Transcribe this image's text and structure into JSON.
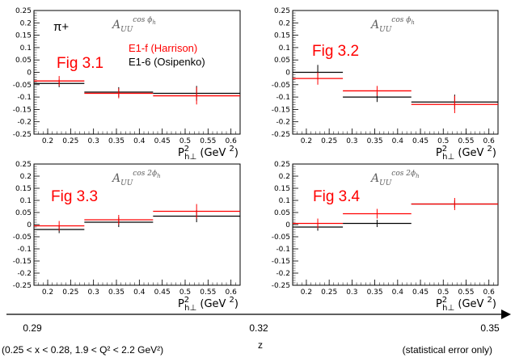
{
  "figure_label": "π+",
  "legend": [
    {
      "label": "E1-f (Harrison)",
      "color": "#ff0000"
    },
    {
      "label": "E1-6 (Osipenko)",
      "color": "#000000"
    }
  ],
  "bottom_axis": {
    "ticks": [
      "0.29",
      "0.32",
      "0.35"
    ],
    "label": "z",
    "kinematics": "(0.25 < x < 0.28, 1.9 < Q² < 2.2 GeV²)",
    "note": "(statistical error only)"
  },
  "chart_data": [
    {
      "type": "scatter",
      "fig_label": "Fig 3.1",
      "title": {
        "base": "A",
        "sub": "UU",
        "sup": "cos ϕ",
        "sup_sub": "h"
      },
      "xlabel": "P²h⊥ (GeV ²)",
      "xlabel_parts": {
        "p": "P",
        "sup": "2",
        "sub": "h⊥",
        "unit": " (GeV ",
        "unit_sup": "2",
        "close": ")"
      },
      "xlim": [
        0.17,
        0.62
      ],
      "ylim": [
        -0.25,
        0.25
      ],
      "x_ticks": [
        "0.2",
        "0.25",
        "0.3",
        "0.35",
        "0.4",
        "0.45",
        "0.5",
        "0.55",
        "0.6"
      ],
      "y_ticks": [
        "0.25",
        "0.2",
        "0.15",
        "0.1",
        "0.05",
        "0",
        "-0.05",
        "-0.1",
        "-0.15",
        "-0.2",
        "-0.25"
      ],
      "series": [
        {
          "name": "E1-f (Harrison)",
          "color": "#ff0000",
          "points": [
            {
              "x": 0.225,
              "xlo": 0.17,
              "xhi": 0.28,
              "y": -0.035,
              "err": 0.02
            },
            {
              "x": 0.355,
              "xlo": 0.28,
              "xhi": 0.43,
              "y": -0.085,
              "err": 0.02
            },
            {
              "x": 0.525,
              "xlo": 0.43,
              "xhi": 0.62,
              "y": -0.095,
              "err": 0.035
            }
          ]
        },
        {
          "name": "E1-6 (Osipenko)",
          "color": "#000000",
          "points": [
            {
              "x": 0.225,
              "xlo": 0.17,
              "xhi": 0.28,
              "y": -0.045,
              "err": 0.015
            },
            {
              "x": 0.355,
              "xlo": 0.28,
              "xhi": 0.43,
              "y": -0.08,
              "err": 0.02
            },
            {
              "x": 0.525,
              "xlo": 0.43,
              "xhi": 0.62,
              "y": -0.085,
              "err": 0.03
            }
          ]
        }
      ]
    },
    {
      "type": "scatter",
      "fig_label": "Fig 3.2",
      "title": {
        "base": "A",
        "sub": "UU",
        "sup": "cos ϕ",
        "sup_sub": "h"
      },
      "xlabel": "P²h⊥ (GeV ²)",
      "xlabel_parts": {
        "p": "P",
        "sup": "2",
        "sub": "h⊥",
        "unit": " (GeV ",
        "unit_sup": "2",
        "close": ")"
      },
      "xlim": [
        0.17,
        0.62
      ],
      "ylim": [
        -0.25,
        0.25
      ],
      "x_ticks": [
        "0.2",
        "0.25",
        "0.3",
        "0.35",
        "0.4",
        "0.45",
        "0.5",
        "0.55",
        "0.6"
      ],
      "y_ticks": [
        "0.25",
        "0.2",
        "0.15",
        "0.1",
        "0.05",
        "0",
        "-0.05",
        "-0.1",
        "-0.15",
        "-0.2",
        "-0.25"
      ],
      "series": [
        {
          "name": "E1-f (Harrison)",
          "color": "#ff0000",
          "points": [
            {
              "x": 0.225,
              "xlo": 0.17,
              "xhi": 0.28,
              "y": -0.025,
              "err": 0.025
            },
            {
              "x": 0.355,
              "xlo": 0.28,
              "xhi": 0.43,
              "y": -0.075,
              "err": 0.02
            },
            {
              "x": 0.525,
              "xlo": 0.43,
              "xhi": 0.62,
              "y": -0.13,
              "err": 0.035
            }
          ]
        },
        {
          "name": "E1-6 (Osipenko)",
          "color": "#000000",
          "points": [
            {
              "x": 0.225,
              "xlo": 0.17,
              "xhi": 0.28,
              "y": 0.0,
              "err": 0.03
            },
            {
              "x": 0.355,
              "xlo": 0.28,
              "xhi": 0.43,
              "y": -0.1,
              "err": 0.02
            },
            {
              "x": 0.525,
              "xlo": 0.43,
              "xhi": 0.62,
              "y": -0.12,
              "err": 0.03
            }
          ]
        }
      ]
    },
    {
      "type": "scatter",
      "fig_label": "Fig 3.3",
      "title": {
        "base": "A",
        "sub": "UU",
        "sup": "cos 2ϕ",
        "sup_sub": "h"
      },
      "xlabel": "P²h⊥ (GeV ²)",
      "xlabel_parts": {
        "p": "P",
        "sup": "2",
        "sub": "h⊥",
        "unit": " (GeV ",
        "unit_sup": "2",
        "close": ")"
      },
      "xlim": [
        0.17,
        0.62
      ],
      "ylim": [
        -0.25,
        0.25
      ],
      "x_ticks": [
        "0.2",
        "0.25",
        "0.3",
        "0.35",
        "0.4",
        "0.45",
        "0.5",
        "0.55",
        "0.6"
      ],
      "y_ticks": [
        "0.25",
        "0.2",
        "0.15",
        "0.1",
        "0.05",
        "0",
        "-0.05",
        "-0.1",
        "-0.15",
        "-0.2",
        "-0.25"
      ],
      "series": [
        {
          "name": "E1-f (Harrison)",
          "color": "#ff0000",
          "points": [
            {
              "x": 0.225,
              "xlo": 0.17,
              "xhi": 0.28,
              "y": -0.005,
              "err": 0.02
            },
            {
              "x": 0.355,
              "xlo": 0.28,
              "xhi": 0.43,
              "y": 0.02,
              "err": 0.02
            },
            {
              "x": 0.525,
              "xlo": 0.43,
              "xhi": 0.62,
              "y": 0.055,
              "err": 0.03
            }
          ]
        },
        {
          "name": "E1-6 (Osipenko)",
          "color": "#000000",
          "points": [
            {
              "x": 0.225,
              "xlo": 0.17,
              "xhi": 0.28,
              "y": -0.02,
              "err": 0.015
            },
            {
              "x": 0.355,
              "xlo": 0.28,
              "xhi": 0.43,
              "y": 0.01,
              "err": 0.02
            },
            {
              "x": 0.525,
              "xlo": 0.43,
              "xhi": 0.62,
              "y": 0.035,
              "err": 0.025
            }
          ]
        }
      ]
    },
    {
      "type": "scatter",
      "fig_label": "Fig 3.4",
      "title": {
        "base": "A",
        "sub": "UU",
        "sup": "cos 2ϕ",
        "sup_sub": "h"
      },
      "xlabel": "P²h⊥ (GeV ²)",
      "xlabel_parts": {
        "p": "P",
        "sup": "2",
        "sub": "h⊥",
        "unit": " (GeV ",
        "unit_sup": "2",
        "close": ")"
      },
      "xlim": [
        0.17,
        0.62
      ],
      "ylim": [
        -0.25,
        0.25
      ],
      "x_ticks": [
        "0.2",
        "0.25",
        "0.3",
        "0.35",
        "0.4",
        "0.45",
        "0.5",
        "0.55",
        "0.6"
      ],
      "y_ticks": [
        "0.25",
        "0.2",
        "0.15",
        "0.1",
        "0.05",
        "0",
        "-0.05",
        "-0.1",
        "-0.15",
        "-0.2",
        "-0.25"
      ],
      "series": [
        {
          "name": "E1-f (Harrison)",
          "color": "#ff0000",
          "points": [
            {
              "x": 0.225,
              "xlo": 0.17,
              "xhi": 0.28,
              "y": 0.005,
              "err": 0.02
            },
            {
              "x": 0.355,
              "xlo": 0.28,
              "xhi": 0.43,
              "y": 0.045,
              "err": 0.02
            },
            {
              "x": 0.525,
              "xlo": 0.43,
              "xhi": 0.62,
              "y": 0.085,
              "err": 0.025
            }
          ]
        },
        {
          "name": "E1-6 (Osipenko)",
          "color": "#000000",
          "points": [
            {
              "x": 0.225,
              "xlo": 0.17,
              "xhi": 0.28,
              "y": -0.01,
              "err": 0.015
            },
            {
              "x": 0.355,
              "xlo": 0.28,
              "xhi": 0.43,
              "y": 0.005,
              "err": 0.015
            },
            {
              "x": 0.525,
              "xlo": 0.43,
              "xhi": 0.62,
              "y": 0.085,
              "err": 0.015
            }
          ]
        }
      ]
    }
  ]
}
